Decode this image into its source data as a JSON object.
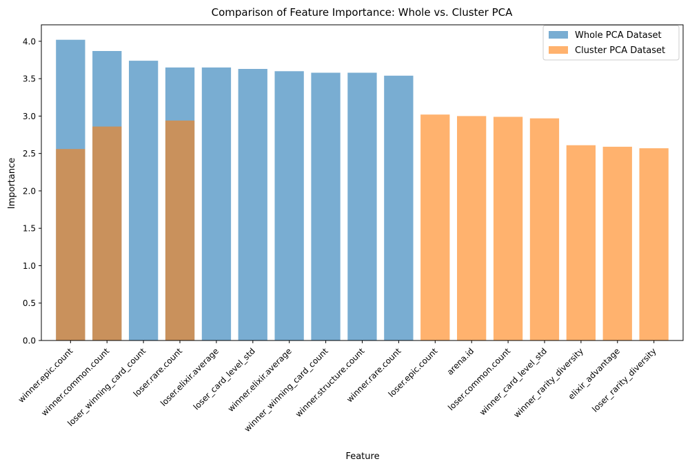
{
  "chart_data": {
    "type": "bar",
    "title": "Comparison of Feature Importance: Whole vs. Cluster PCA",
    "xlabel": "Feature",
    "ylabel": "Importance",
    "ylim": [
      0,
      4.22
    ],
    "yticks": [
      "0.0",
      "0.5",
      "1.0",
      "1.5",
      "2.0",
      "2.5",
      "3.0",
      "3.5",
      "4.0"
    ],
    "grid": false,
    "legend_position": "top-right",
    "categories": [
      "winner.epic.count",
      "winner.common.count",
      "loser_winning_card_count",
      "loser.rare.count",
      "loser.elixir.average",
      "loser_card_level_std",
      "winner.elixir.average",
      "winner_winning_card_count",
      "winner.structure.count",
      "winner.rare.count",
      "loser.epic.count",
      "arena.id",
      "loser.common.count",
      "winner_card_level_std",
      "winner_rarity_diversity",
      "elixir_advantage",
      "loser_rarity_diversity"
    ],
    "series": [
      {
        "name": "Whole PCA Dataset",
        "color": "#1f77b4",
        "opacity": 0.6,
        "values": [
          4.02,
          3.87,
          3.74,
          3.65,
          3.65,
          3.63,
          3.6,
          3.58,
          3.58,
          3.54,
          null,
          null,
          null,
          null,
          null,
          null,
          null
        ]
      },
      {
        "name": "Cluster PCA Dataset",
        "color": "#ff7f0e",
        "opacity": 0.6,
        "values": [
          2.56,
          2.86,
          null,
          2.94,
          null,
          null,
          null,
          null,
          null,
          null,
          3.02,
          3.0,
          2.99,
          2.97,
          2.61,
          2.59,
          2.57
        ]
      }
    ]
  }
}
